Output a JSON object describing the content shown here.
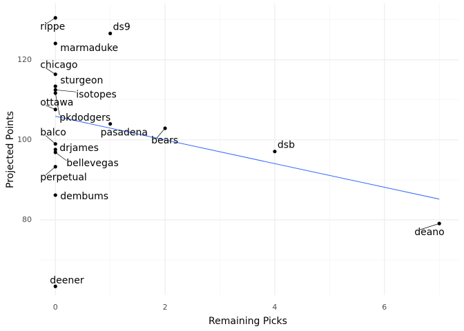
{
  "chart_data": {
    "type": "scatter",
    "x_label": "Remaining Picks",
    "y_label": "Projected Points",
    "labels": [
      "rippe",
      "ds9",
      "marmaduke",
      "chicago",
      "sturgeon",
      "isotopes",
      "pkdodgers",
      "ottawa",
      "pasadena",
      "bears",
      "balco",
      "drjames",
      "bellevegas",
      "perpetual",
      "dembums",
      "dsb",
      "deano",
      "deener"
    ],
    "x": [
      0,
      1,
      0,
      0,
      0,
      0,
      0,
      0,
      1,
      2,
      0,
      0,
      0,
      0,
      0,
      4,
      7,
      0
    ],
    "y": [
      130.5,
      126.6,
      124.1,
      116.4,
      113.4,
      112.5,
      111.7,
      107.6,
      104.0,
      102.9,
      99.0,
      97.6,
      96.9,
      93.3,
      86.2,
      97.1,
      79.1,
      63.4
    ],
    "color": "#000000",
    "trend": {
      "x": [
        0,
        7
      ],
      "y": [
        105.9,
        85.2
      ],
      "color": "#3366ff"
    },
    "xlim": [
      -0.28,
      7.35
    ],
    "ylim": [
      61.2,
      134.1
    ],
    "xticks": [
      0,
      2,
      4,
      6
    ],
    "yticks": [
      80,
      100,
      120
    ],
    "x_minor_grid": [
      1,
      3,
      5,
      7
    ],
    "y_minor_grid": [
      70,
      90,
      110,
      130
    ],
    "grid": true
  }
}
